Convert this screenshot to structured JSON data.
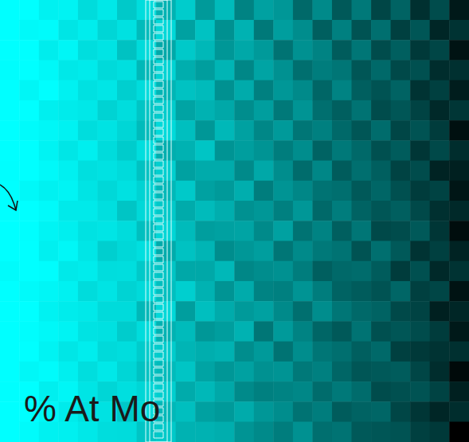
{
  "chart_data": {
    "type": "heatmap",
    "annotations": [
      "% At Mo"
    ],
    "tick_labels": false,
    "cells": [
      [
        100,
        100,
        88,
        90,
        70,
        80,
        62,
        71,
        55,
        63,
        48,
        58,
        41,
        50,
        47,
        33,
        43,
        28,
        38,
        22,
        31,
        15,
        24,
        8
      ],
      [
        100,
        95,
        97,
        78,
        85,
        66,
        74,
        58,
        67,
        50,
        60,
        45,
        55,
        38,
        49,
        44,
        30,
        40,
        26,
        35,
        20,
        27,
        12,
        16
      ],
      [
        100,
        100,
        85,
        92,
        72,
        77,
        60,
        69,
        52,
        62,
        57,
        47,
        52,
        48,
        36,
        45,
        41,
        29,
        37,
        24,
        30,
        18,
        22,
        6
      ],
      [
        98,
        100,
        94,
        80,
        83,
        68,
        73,
        57,
        65,
        54,
        49,
        56,
        42,
        51,
        45,
        35,
        39,
        37,
        27,
        33,
        23,
        25,
        14,
        15
      ],
      [
        100,
        92,
        99,
        88,
        74,
        79,
        64,
        70,
        56,
        60,
        58,
        45,
        53,
        40,
        47,
        43,
        32,
        41,
        30,
        26,
        31,
        16,
        20,
        9
      ],
      [
        100,
        100,
        86,
        83,
        80,
        65,
        71,
        61,
        63,
        51,
        55,
        52,
        44,
        49,
        38,
        46,
        35,
        30,
        36,
        24,
        27,
        21,
        13,
        17
      ],
      [
        100,
        97,
        93,
        89,
        71,
        76,
        66,
        58,
        68,
        59,
        47,
        57,
        50,
        42,
        48,
        37,
        40,
        33,
        27,
        34,
        22,
        26,
        19,
        5
      ],
      [
        100,
        100,
        90,
        79,
        86,
        70,
        63,
        72,
        54,
        55,
        61,
        46,
        49,
        46,
        39,
        44,
        31,
        38,
        33,
        25,
        29,
        17,
        23,
        14
      ],
      [
        99,
        100,
        95,
        87,
        73,
        75,
        69,
        60,
        64,
        50,
        53,
        53,
        43,
        52,
        44,
        34,
        42,
        29,
        35,
        30,
        21,
        24,
        11,
        10
      ],
      [
        100,
        94,
        88,
        91,
        77,
        67,
        74,
        65,
        57,
        62,
        50,
        48,
        54,
        39,
        46,
        42,
        36,
        35,
        28,
        32,
        25,
        19,
        21,
        7
      ],
      [
        100,
        100,
        96,
        82,
        82,
        73,
        61,
        67,
        62,
        53,
        58,
        54,
        45,
        47,
        40,
        47,
        33,
        39,
        31,
        27,
        30,
        23,
        15,
        13
      ],
      [
        100,
        99,
        91,
        86,
        75,
        78,
        70,
        59,
        66,
        58,
        49,
        50,
        51,
        43,
        50,
        36,
        41,
        30,
        37,
        23,
        24,
        28,
        17,
        4
      ],
      [
        100,
        100,
        87,
        93,
        79,
        64,
        67,
        73,
        53,
        60,
        56,
        44,
        47,
        49,
        37,
        43,
        38,
        36,
        26,
        35,
        28,
        16,
        20,
        11
      ],
      [
        97,
        100,
        98,
        81,
        84,
        71,
        72,
        62,
        61,
        52,
        52,
        57,
        42,
        44,
        45,
        39,
        30,
        33,
        34,
        29,
        19,
        25,
        13,
        16
      ],
      [
        100,
        96,
        92,
        88,
        70,
        77,
        65,
        68,
        59,
        64,
        55,
        46,
        53,
        41,
        40,
        46,
        39,
        31,
        29,
        26,
        32,
        20,
        22,
        6
      ],
      [
        100,
        100,
        89,
        84,
        81,
        69,
        69,
        57,
        67,
        49,
        59,
        53,
        48,
        50,
        43,
        35,
        44,
        37,
        33,
        31,
        23,
        21,
        10,
        12
      ],
      [
        100,
        98,
        94,
        90,
        76,
        74,
        63,
        70,
        55,
        58,
        47,
        49,
        55,
        37,
        48,
        41,
        32,
        28,
        36,
        25,
        27,
        24,
        19,
        8
      ],
      [
        100,
        100,
        90,
        79,
        85,
        68,
        71,
        63,
        63,
        56,
        54,
        55,
        44,
        48,
        36,
        44,
        37,
        35,
        30,
        33,
        20,
        18,
        16,
        15
      ],
      [
        100,
        93,
        97,
        86,
        72,
        80,
        66,
        60,
        58,
        61,
        51,
        47,
        50,
        45,
        46,
        38,
        40,
        32,
        27,
        28,
        29,
        22,
        14,
        3
      ],
      [
        99,
        100,
        86,
        92,
        78,
        66,
        73,
        66,
        64,
        53,
        57,
        52,
        43,
        40,
        41,
        42,
        34,
        38,
        34,
        24,
        25,
        26,
        21,
        10
      ],
      [
        100,
        100,
        93,
        83,
        74,
        75,
        62,
        68,
        57,
        59,
        50,
        48,
        53,
        47,
        44,
        36,
        39,
        29,
        31,
        32,
        22,
        17,
        12,
        14
      ],
      [
        100,
        97,
        88,
        87,
        80,
        71,
        70,
        61,
        62,
        55,
        55,
        54,
        46,
        43,
        39,
        45,
        35,
        36,
        28,
        27,
        26,
        20,
        18,
        0
      ]
    ]
  }
}
